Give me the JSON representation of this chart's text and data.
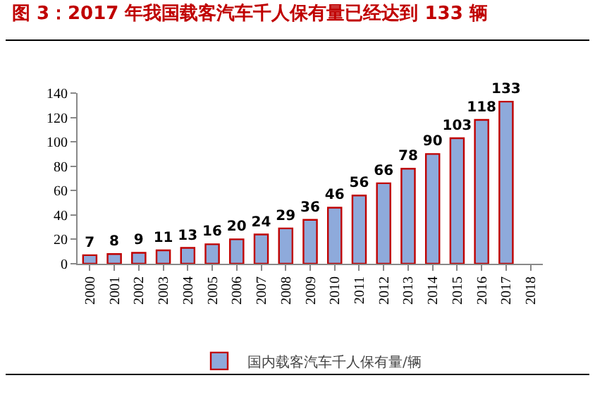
{
  "chart_data": {
    "type": "bar",
    "title": "图 3：2017 年我国载客汽车千人保有量已经达到 133 辆",
    "categories": [
      "2000",
      "2001",
      "2002",
      "2003",
      "2004",
      "2005",
      "2006",
      "2007",
      "2008",
      "2009",
      "2010",
      "2011",
      "2012",
      "2013",
      "2014",
      "2015",
      "2016",
      "2017",
      "2018"
    ],
    "series": [
      {
        "name": "国内载客汽车千人保有量/辆",
        "color": "#8eaadb",
        "values": [
          7,
          8,
          9,
          11,
          13,
          16,
          20,
          24,
          29,
          36,
          46,
          56,
          66,
          78,
          90,
          103,
          118,
          133,
          null
        ]
      }
    ],
    "ylim": [
      0,
      140
    ],
    "yticks": [
      0,
      20,
      40,
      60,
      80,
      100,
      120,
      140
    ],
    "grid": false,
    "legend": "bottom",
    "data_labels": true
  }
}
